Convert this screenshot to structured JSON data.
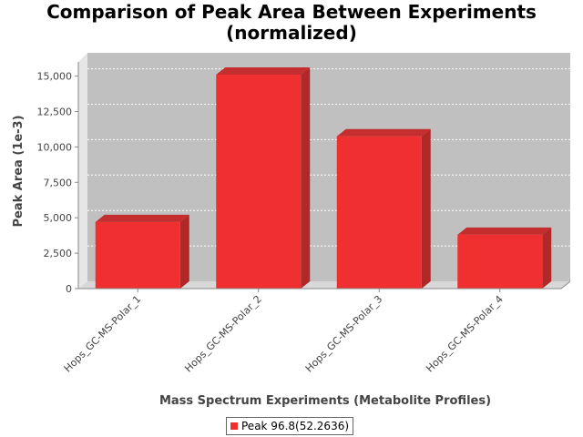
{
  "chart_data": {
    "type": "bar",
    "title": [
      "Comparison of Peak Area Between Experiments",
      "(normalized)"
    ],
    "xlabel": "Mass Spectrum Experiments (Metabolite Profiles)",
    "ylabel": "Peak Area (1e-3)",
    "categories": [
      "Hops_GC-MS-Polar_1",
      "Hops_GC-MS-Polar_2",
      "Hops_GC-MS-Polar_3",
      "Hops_GC-MS-Polar_4"
    ],
    "series": [
      {
        "name": "Peak 96.8(52.2636)",
        "values": [
          4700,
          15100,
          10750,
          3800
        ],
        "color": "#f03030"
      }
    ],
    "ylim": [
      0,
      16000
    ],
    "yticks": [
      0,
      2500,
      5000,
      7500,
      10000,
      12500,
      15000
    ],
    "ytick_labels": [
      "0",
      "2,500",
      "5,000",
      "7,500",
      "10,000",
      "12,500",
      "15,000"
    ],
    "grid": true,
    "legend": "bottom-center",
    "plot_background": "#c0c0c0"
  }
}
